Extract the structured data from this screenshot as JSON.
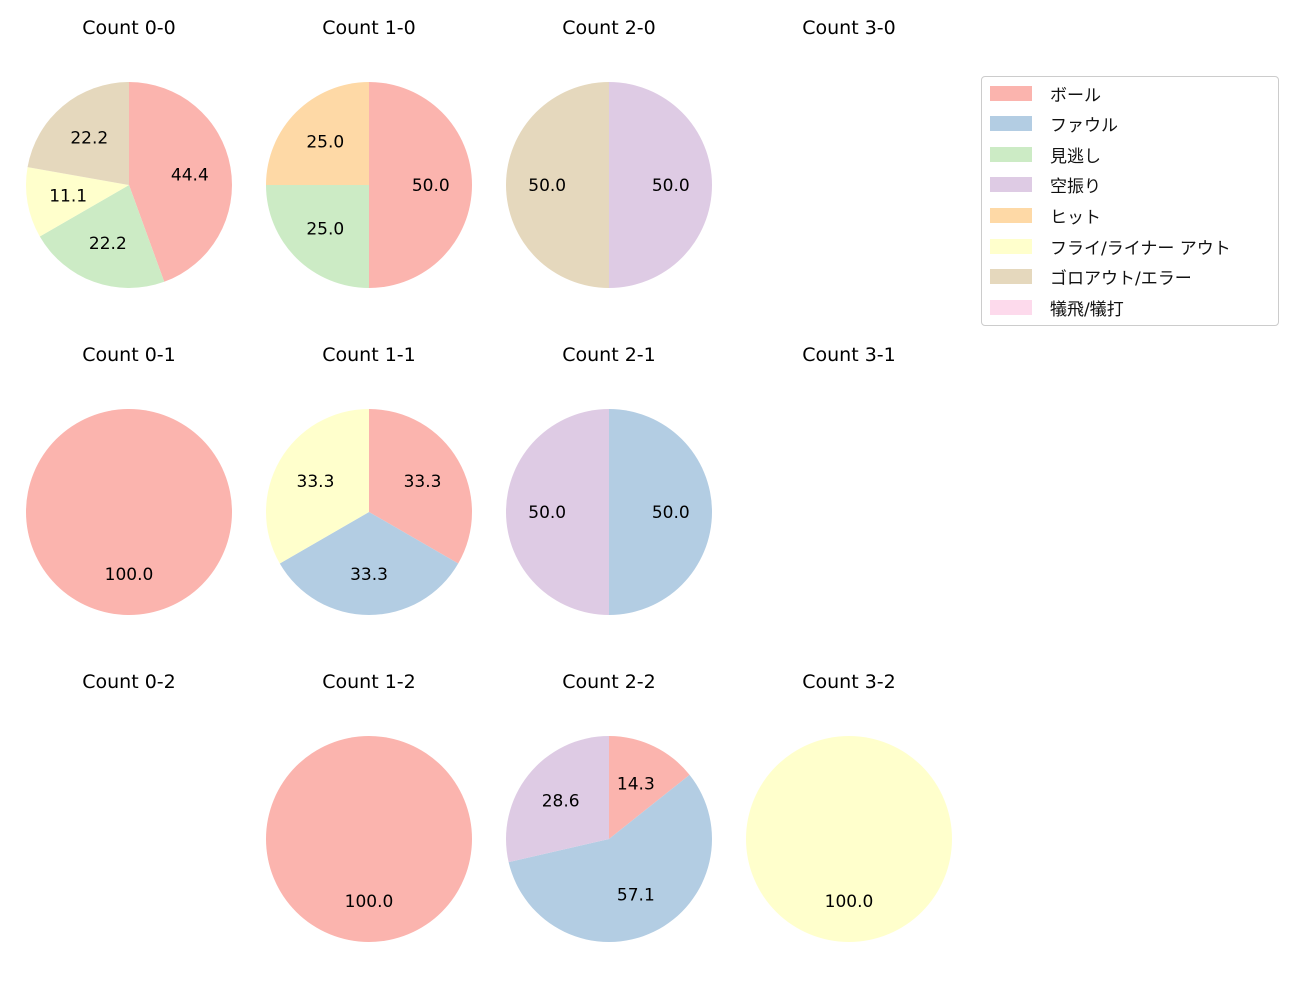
{
  "chart_data": {
    "type": "pie",
    "categories": [
      "ボール",
      "ファウル",
      "見逃し",
      "空振り",
      "ヒット",
      "フライ/ライナー アウト",
      "ゴロアウト/エラー",
      "犠飛/犠打"
    ],
    "colors": [
      "#fbb4ae",
      "#b3cde3",
      "#ccebc5",
      "#decbe4",
      "#fed9a6",
      "#ffffcc",
      "#e5d8bd",
      "#fddaec"
    ],
    "start_angle": 90,
    "direction": "clockwise",
    "legend_position": "right",
    "pies": [
      {
        "title": "Count 0-0",
        "values": [
          44.4,
          0,
          22.2,
          0,
          0,
          11.1,
          22.2,
          0
        ]
      },
      {
        "title": "Count 1-0",
        "values": [
          50.0,
          0,
          25.0,
          0,
          25.0,
          0,
          0,
          0
        ]
      },
      {
        "title": "Count 2-0",
        "values": [
          0,
          0,
          0,
          50.0,
          0,
          0,
          50.0,
          0
        ]
      },
      {
        "title": "Count 3-0",
        "values": []
      },
      {
        "title": "Count 0-1",
        "values": [
          100.0,
          0,
          0,
          0,
          0,
          0,
          0,
          0
        ]
      },
      {
        "title": "Count 1-1",
        "values": [
          33.3,
          33.3,
          0,
          0,
          0,
          33.3,
          0,
          0
        ]
      },
      {
        "title": "Count 2-1",
        "values": [
          0,
          50.0,
          0,
          50.0,
          0,
          0,
          0,
          0
        ]
      },
      {
        "title": "Count 3-1",
        "values": []
      },
      {
        "title": "Count 0-2",
        "values": []
      },
      {
        "title": "Count 1-2",
        "values": [
          100.0,
          0,
          0,
          0,
          0,
          0,
          0,
          0
        ]
      },
      {
        "title": "Count 2-2",
        "values": [
          14.3,
          57.1,
          0,
          28.6,
          0,
          0,
          0,
          0
        ]
      },
      {
        "title": "Count 3-2",
        "values": [
          0,
          0,
          0,
          0,
          0,
          100.0,
          0,
          0
        ]
      }
    ]
  }
}
